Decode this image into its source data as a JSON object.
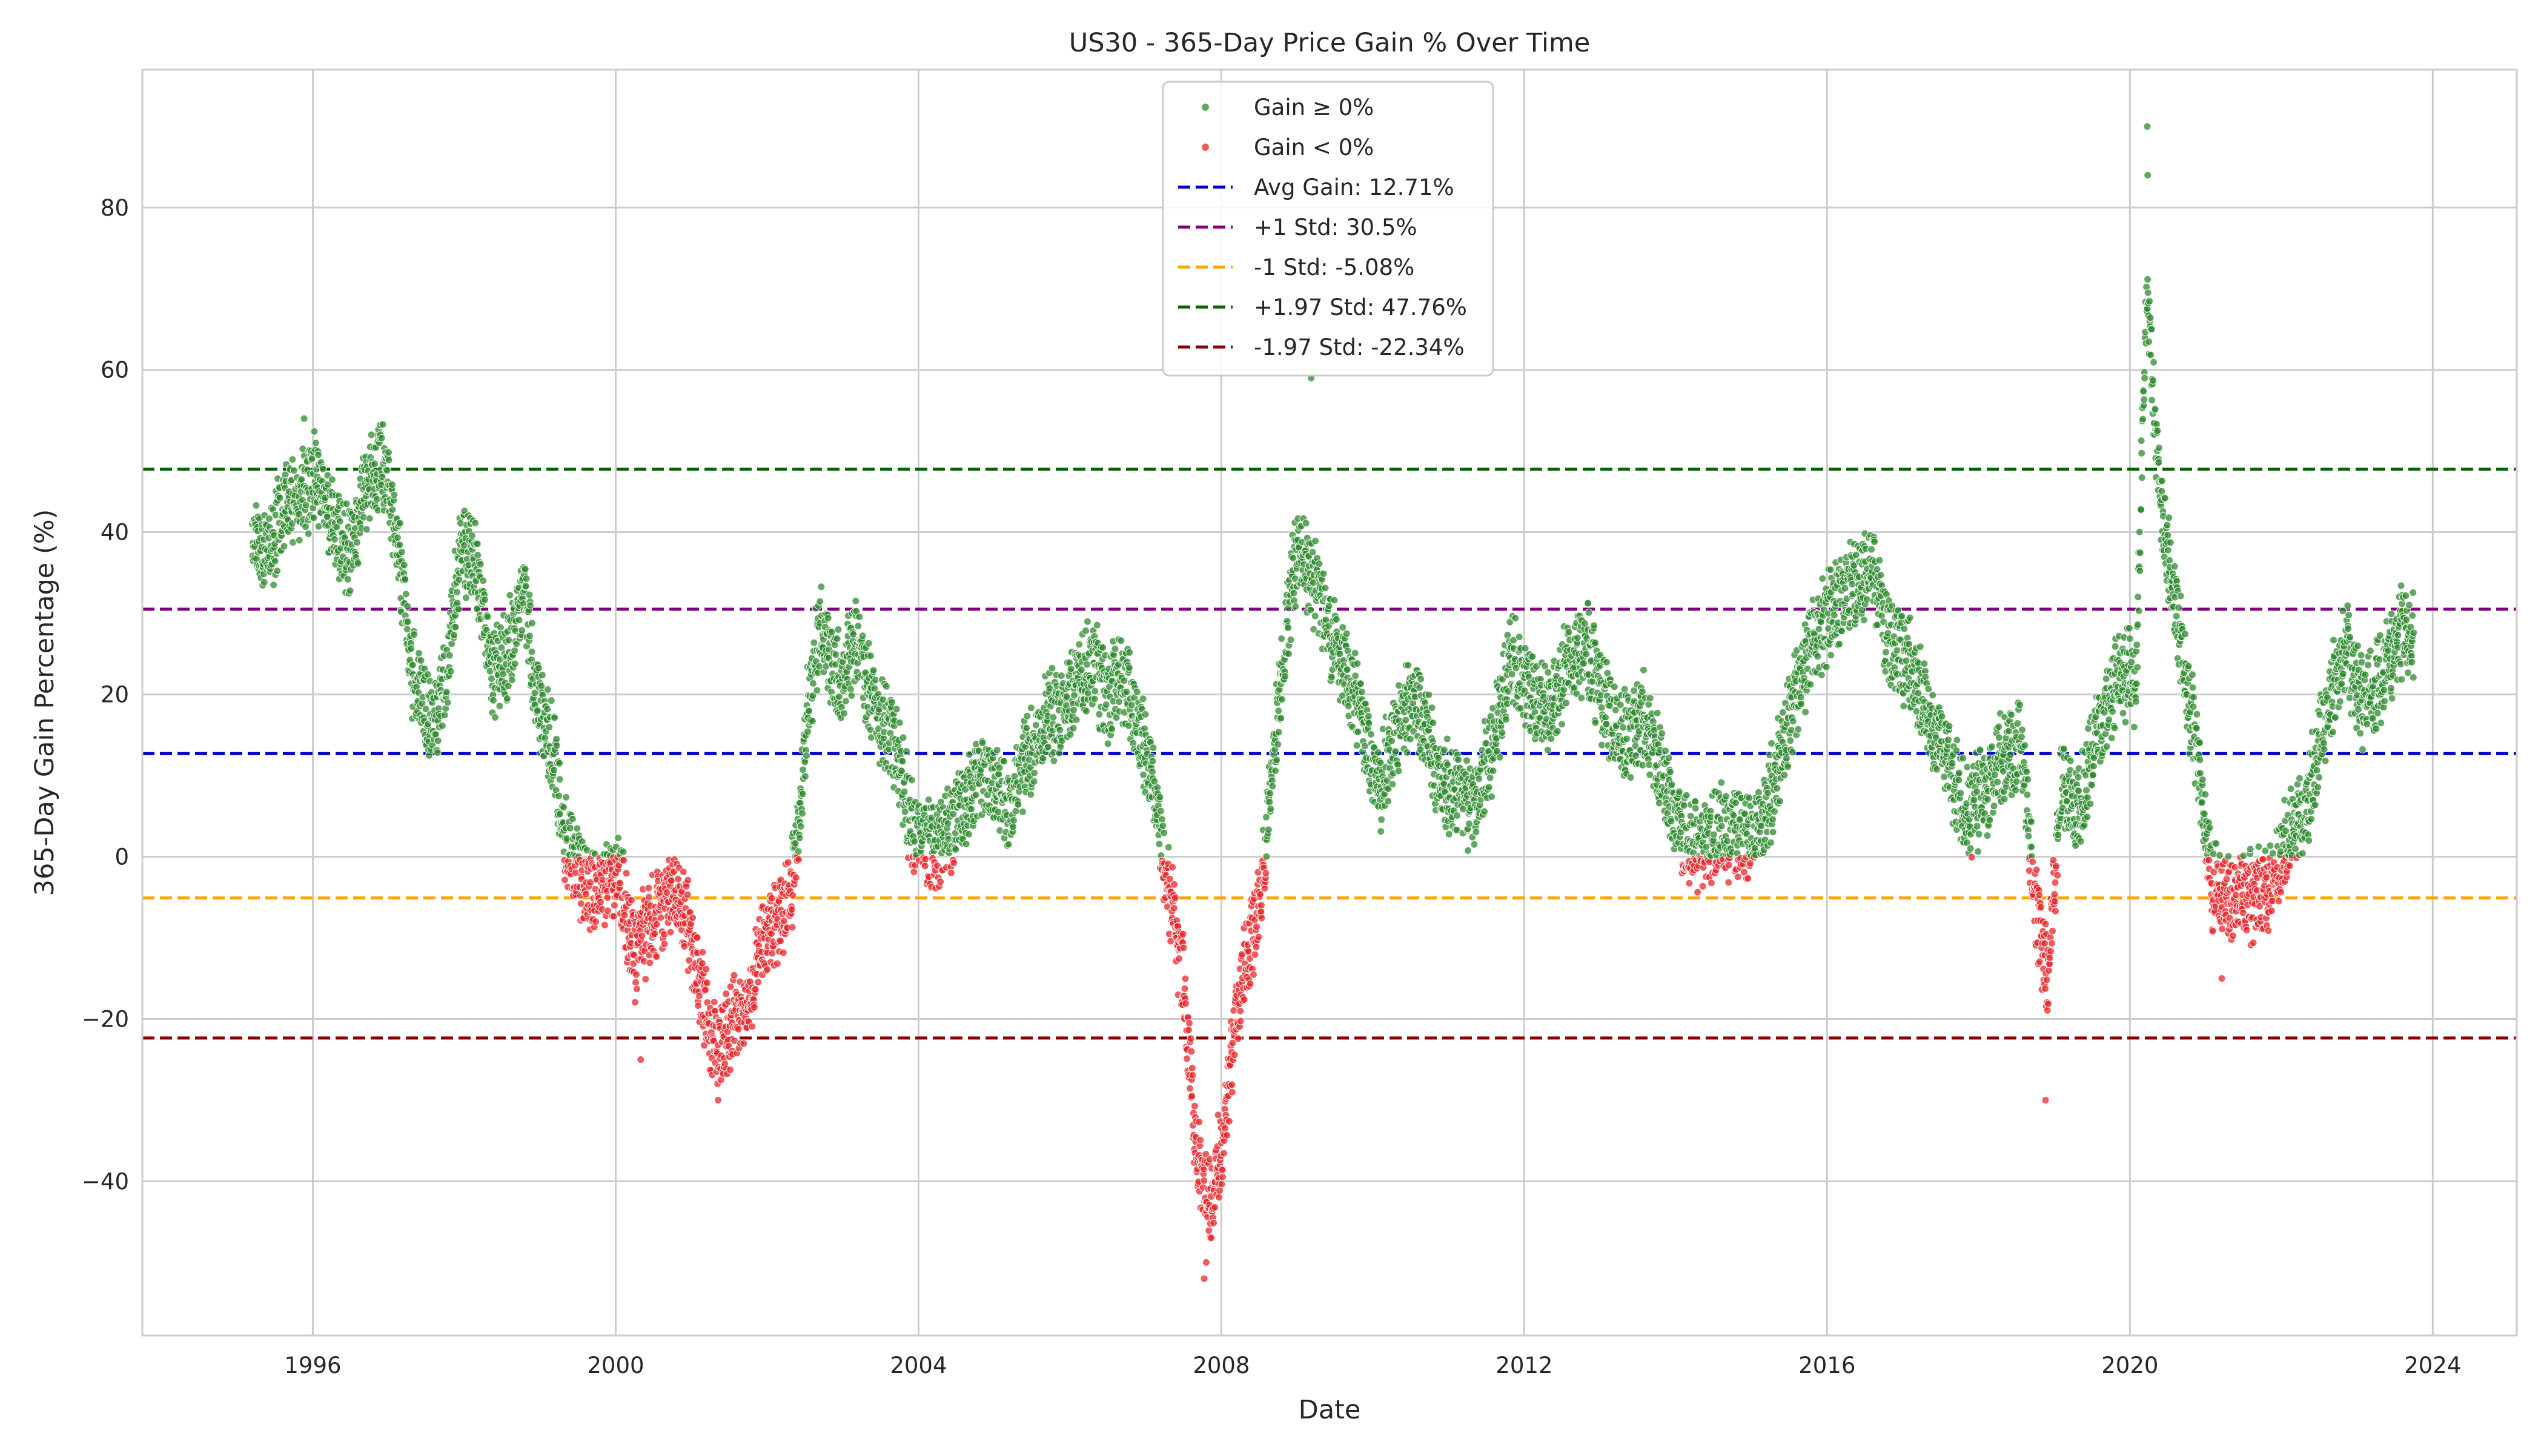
{
  "chart_data": {
    "type": "scatter",
    "title": "US30 - 365-Day Price Gain % Over Time",
    "xlabel": "Date",
    "ylabel": "365-Day Gain Percentage (%)",
    "x_ticks": [
      "1996",
      "2000",
      "2004",
      "2008",
      "2012",
      "2016",
      "2020",
      "2024"
    ],
    "y_ticks": [
      -40,
      -20,
      0,
      20,
      40,
      60,
      80
    ],
    "xlim": [
      "1993-10-01",
      "2025-02-10"
    ],
    "ylim": [
      -59,
      97
    ],
    "grid": true,
    "legend_position": "top-center",
    "series": [
      {
        "name": "Gain ≥ 0%",
        "kind": "scatter",
        "color": "#2e8b2e"
      },
      {
        "name": "Gain < 0%",
        "kind": "scatter",
        "color": "#e8262b"
      }
    ],
    "reference_lines": [
      {
        "name": "Avg Gain: 12.71%",
        "y": 12.71,
        "color": "#0000cc"
      },
      {
        "name": "+1 Std: 30.5%",
        "y": 30.5,
        "color": "#800080"
      },
      {
        "name": "-1 Std: -5.08%",
        "y": -5.08,
        "color": "#ffa500"
      },
      {
        "name": "+1.97 Std: 47.76%",
        "y": 47.76,
        "color": "#006400"
      },
      {
        "name": "-1.97 Std: -22.34%",
        "y": -22.34,
        "color": "#8b0000"
      }
    ],
    "trend": [
      [
        "1995-03-15",
        39
      ],
      [
        "1995-06-01",
        38
      ],
      [
        "1995-09-01",
        44
      ],
      [
        "1995-12-01",
        45
      ],
      [
        "1996-01-15",
        48
      ],
      [
        "1996-04-01",
        41
      ],
      [
        "1996-07-01",
        38
      ],
      [
        "1996-10-01",
        47
      ],
      [
        "1996-12-15",
        48
      ],
      [
        "1997-03-01",
        35
      ],
      [
        "1997-05-01",
        22
      ],
      [
        "1997-07-15",
        17
      ],
      [
        "1997-10-01",
        21
      ],
      [
        "1997-12-15",
        38
      ],
      [
        "1998-03-01",
        36
      ],
      [
        "1998-05-15",
        22
      ],
      [
        "1998-08-01",
        25
      ],
      [
        "1998-10-15",
        33
      ],
      [
        "1998-12-15",
        20
      ],
      [
        "1999-03-01",
        14
      ],
      [
        "1999-05-01",
        2
      ],
      [
        "1999-08-01",
        -3
      ],
      [
        "1999-11-01",
        -4
      ],
      [
        "2000-01-15",
        -2
      ],
      [
        "2000-04-01",
        -12
      ],
      [
        "2000-07-01",
        -8
      ],
      [
        "2000-10-01",
        -4
      ],
      [
        "2000-12-15",
        -8
      ],
      [
        "2001-03-01",
        -18
      ],
      [
        "2001-05-01",
        -24
      ],
      [
        "2001-07-15",
        -20
      ],
      [
        "2001-10-01",
        -18
      ],
      [
        "2001-12-15",
        -10
      ],
      [
        "2002-03-01",
        -8
      ],
      [
        "2002-05-15",
        -2
      ],
      [
        "2002-07-15",
        18
      ],
      [
        "2002-09-15",
        28
      ],
      [
        "2002-12-15",
        22
      ],
      [
        "2003-03-01",
        27
      ],
      [
        "2003-06-01",
        18
      ],
      [
        "2003-09-01",
        14
      ],
      [
        "2003-12-01",
        4
      ],
      [
        "2004-03-01",
        1
      ],
      [
        "2004-06-01",
        3
      ],
      [
        "2004-09-01",
        8
      ],
      [
        "2004-12-01",
        11
      ],
      [
        "2005-03-15",
        5
      ],
      [
        "2005-06-01",
        12
      ],
      [
        "2005-09-01",
        17
      ],
      [
        "2005-12-01",
        18
      ],
      [
        "2006-04-01",
        24
      ],
      [
        "2006-07-01",
        20
      ],
      [
        "2006-10-01",
        22
      ],
      [
        "2006-12-01",
        16
      ],
      [
        "2007-03-01",
        5
      ],
      [
        "2007-05-01",
        -5
      ],
      [
        "2007-07-01",
        -15
      ],
      [
        "2007-09-01",
        -37
      ],
      [
        "2007-11-01",
        -43
      ],
      [
        "2008-01-01",
        -36
      ],
      [
        "2008-03-01",
        -22
      ],
      [
        "2008-05-01",
        -12
      ],
      [
        "2008-07-01",
        -6
      ],
      [
        "2008-09-01",
        10
      ],
      [
        "2008-11-01",
        26
      ],
      [
        "2009-01-01",
        38
      ],
      [
        "2009-03-01",
        35
      ],
      [
        "2009-05-01",
        31
      ],
      [
        "2009-08-01",
        24
      ],
      [
        "2009-11-01",
        18
      ],
      [
        "2010-02-01",
        8
      ],
      [
        "2010-05-01",
        16
      ],
      [
        "2010-08-01",
        20
      ],
      [
        "2010-11-01",
        10
      ],
      [
        "2011-02-01",
        8
      ],
      [
        "2011-05-01",
        6
      ],
      [
        "2011-08-01",
        14
      ],
      [
        "2011-11-01",
        24
      ],
      [
        "2012-02-01",
        20
      ],
      [
        "2012-05-01",
        18
      ],
      [
        "2012-08-01",
        24
      ],
      [
        "2012-11-01",
        26
      ],
      [
        "2013-02-01",
        18
      ],
      [
        "2013-05-01",
        15
      ],
      [
        "2013-08-01",
        17
      ],
      [
        "2013-11-01",
        10
      ],
      [
        "2014-02-01",
        3
      ],
      [
        "2014-05-01",
        1
      ],
      [
        "2014-08-01",
        3
      ],
      [
        "2014-11-01",
        2
      ],
      [
        "2015-02-01",
        3
      ],
      [
        "2015-05-01",
        10
      ],
      [
        "2015-08-01",
        20
      ],
      [
        "2015-11-01",
        27
      ],
      [
        "2016-02-01",
        30
      ],
      [
        "2016-05-01",
        34
      ],
      [
        "2016-08-01",
        36
      ],
      [
        "2016-11-01",
        26
      ],
      [
        "2017-02-01",
        24
      ],
      [
        "2017-05-01",
        17
      ],
      [
        "2017-08-01",
        12
      ],
      [
        "2017-11-01",
        5
      ],
      [
        "2018-02-01",
        8
      ],
      [
        "2018-05-01",
        12
      ],
      [
        "2018-08-01",
        13
      ],
      [
        "2018-10-01",
        -5
      ],
      [
        "2018-12-01",
        -15
      ],
      [
        "2019-02-01",
        8
      ],
      [
        "2019-05-01",
        6
      ],
      [
        "2019-08-01",
        16
      ],
      [
        "2019-11-01",
        22
      ],
      [
        "2020-02-01",
        22
      ],
      [
        "2020-03-20",
        70
      ],
      [
        "2020-06-01",
        42
      ],
      [
        "2020-09-01",
        27
      ],
      [
        "2020-12-01",
        10
      ],
      [
        "2021-02-01",
        -3
      ],
      [
        "2021-05-01",
        -5
      ],
      [
        "2021-08-01",
        -5
      ],
      [
        "2021-11-01",
        -4
      ],
      [
        "2022-02-01",
        2
      ],
      [
        "2022-05-01",
        6
      ],
      [
        "2022-08-01",
        17
      ],
      [
        "2022-11-01",
        26
      ],
      [
        "2023-02-01",
        18
      ],
      [
        "2023-05-01",
        22
      ],
      [
        "2023-08-01",
        28
      ],
      [
        "2023-10-01",
        27
      ]
    ],
    "annotated_points": [
      [
        "2020-03-25",
        90
      ],
      [
        "2020-03-27",
        84
      ],
      [
        "2009-03-10",
        59
      ],
      [
        "1995-11-20",
        54
      ],
      [
        "1996-01-15",
        51
      ],
      [
        "1996-10-10",
        52
      ],
      [
        "2007-10-10",
        -52
      ],
      [
        "2007-10-20",
        -50
      ],
      [
        "2001-05-10",
        -30
      ],
      [
        "2018-11-20",
        -30
      ],
      [
        "2021-03-20",
        -15
      ],
      [
        "2000-05-01",
        -25
      ]
    ]
  }
}
